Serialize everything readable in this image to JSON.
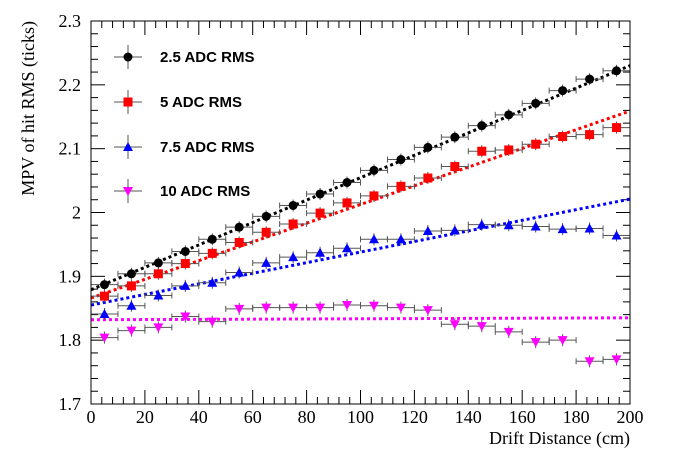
{
  "chart_data": {
    "type": "scatter",
    "xlabel": "Drift Distance (cm)",
    "ylabel": "MPV of hit RMS (ticks)",
    "xlim": [
      0,
      200
    ],
    "ylim": [
      1.7,
      2.3
    ],
    "xticks": [
      0,
      20,
      40,
      60,
      80,
      100,
      120,
      140,
      160,
      180,
      200
    ],
    "yticks": [
      1.7,
      1.8,
      1.9,
      2.0,
      2.1,
      2.2,
      2.3
    ],
    "ytick_labels": [
      "1.7",
      "1.8",
      "1.9",
      "2",
      "2.1",
      "2.2",
      "2.3"
    ],
    "x_error": 5,
    "grid": false,
    "legend_position": "top-left",
    "series": [
      {
        "name": "2.5 ADC RMS",
        "color": "#000000",
        "marker": "circle",
        "x": [
          5,
          15,
          25,
          35,
          45,
          55,
          65,
          75,
          85,
          95,
          105,
          115,
          125,
          135,
          145,
          155,
          165,
          175,
          185,
          195
        ],
        "values": [
          1.887,
          1.904,
          1.921,
          1.939,
          1.958,
          1.977,
          1.994,
          2.011,
          2.029,
          2.047,
          2.066,
          2.083,
          2.102,
          2.118,
          2.136,
          2.153,
          2.171,
          2.191,
          2.209,
          2.222
        ],
        "fit": [
          1.879,
          2.23
        ]
      },
      {
        "name": "5 ADC RMS",
        "color": "#ff0000",
        "marker": "square",
        "x": [
          5,
          15,
          25,
          35,
          45,
          55,
          65,
          75,
          85,
          95,
          105,
          115,
          125,
          135,
          145,
          155,
          165,
          175,
          185,
          195
        ],
        "values": [
          1.869,
          1.885,
          1.904,
          1.92,
          1.936,
          1.953,
          1.969,
          1.982,
          1.999,
          2.015,
          2.026,
          2.041,
          2.054,
          2.072,
          2.096,
          2.098,
          2.107,
          2.119,
          2.122,
          2.133
        ],
        "fit": [
          1.866,
          2.159
        ]
      },
      {
        "name": "7.5 ADC RMS",
        "color": "#0000ff",
        "marker": "triangle-up",
        "x": [
          5,
          15,
          25,
          35,
          45,
          55,
          65,
          75,
          85,
          95,
          105,
          115,
          125,
          135,
          145,
          155,
          165,
          175,
          185,
          195
        ],
        "values": [
          1.841,
          1.854,
          1.87,
          1.885,
          1.89,
          1.906,
          1.921,
          1.93,
          1.937,
          1.944,
          1.958,
          1.958,
          1.971,
          1.972,
          1.981,
          1.98,
          1.978,
          1.974,
          1.975,
          1.964
        ],
        "fit": [
          1.855,
          2.021
        ]
      },
      {
        "name": "10 ADC RMS",
        "color": "#ff00ff",
        "marker": "triangle-down",
        "x": [
          5,
          15,
          25,
          35,
          45,
          55,
          65,
          75,
          85,
          95,
          105,
          115,
          125,
          135,
          145,
          155,
          165,
          175,
          185,
          195
        ],
        "values": [
          1.804,
          1.815,
          1.82,
          1.837,
          1.829,
          1.849,
          1.851,
          1.851,
          1.851,
          1.855,
          1.854,
          1.851,
          1.847,
          1.825,
          1.822,
          1.813,
          1.797,
          1.8,
          1.767,
          1.77
        ],
        "fit": [
          1.832,
          1.835
        ]
      }
    ]
  }
}
